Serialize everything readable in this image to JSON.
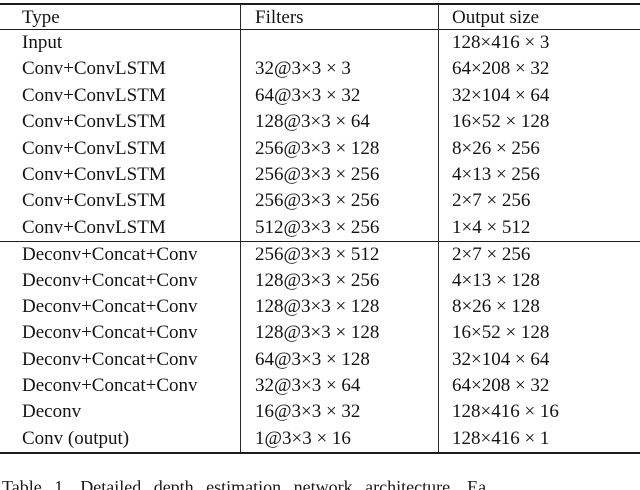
{
  "table": {
    "headers": {
      "type": "Type",
      "filters": "Filters",
      "output": "Output size"
    },
    "rows": [
      {
        "type": "Input",
        "filters": "",
        "output": "128×416 × 3"
      },
      {
        "type": "Conv+ConvLSTM",
        "filters": "32@3×3 × 3",
        "output": "64×208 × 32"
      },
      {
        "type": "Conv+ConvLSTM",
        "filters": "64@3×3 × 32",
        "output": "32×104 × 64"
      },
      {
        "type": "Conv+ConvLSTM",
        "filters": "128@3×3 × 64",
        "output": "16×52 × 128"
      },
      {
        "type": "Conv+ConvLSTM",
        "filters": "256@3×3 × 128",
        "output": "8×26 × 256"
      },
      {
        "type": "Conv+ConvLSTM",
        "filters": "256@3×3 × 256",
        "output": "4×13 × 256"
      },
      {
        "type": "Conv+ConvLSTM",
        "filters": "256@3×3 × 256",
        "output": "2×7 × 256"
      },
      {
        "type": "Conv+ConvLSTM",
        "filters": "512@3×3 × 256",
        "output": "1×4 × 512"
      },
      {
        "type": "Deconv+Concat+Conv",
        "filters": "256@3×3 × 512",
        "output": "2×7 × 256"
      },
      {
        "type": "Deconv+Concat+Conv",
        "filters": "128@3×3 × 256",
        "output": "4×13 × 128"
      },
      {
        "type": "Deconv+Concat+Conv",
        "filters": "128@3×3 × 128",
        "output": "8×26 × 128"
      },
      {
        "type": "Deconv+Concat+Conv",
        "filters": "128@3×3 × 128",
        "output": "16×52 × 128"
      },
      {
        "type": "Deconv+Concat+Conv",
        "filters": "64@3×3 × 128",
        "output": "32×104 × 64"
      },
      {
        "type": "Deconv+Concat+Conv",
        "filters": "32@3×3 × 64",
        "output": "64×208 × 32"
      },
      {
        "type": "Deconv",
        "filters": "16@3×3 × 32",
        "output": "128×416 × 16"
      },
      {
        "type": "Conv (output)",
        "filters": "1@3×3 × 16",
        "output": "128×416 × 1"
      }
    ]
  },
  "caption": "Table 1. Detailed depth estimation network architecture. Ea",
  "colors": {
    "text": "#141414",
    "rule": "#1c1c1c",
    "background": "#ffffff"
  }
}
